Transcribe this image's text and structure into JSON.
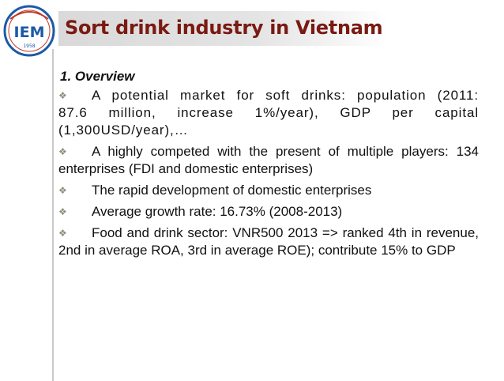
{
  "slide": {
    "logo": {
      "text": "IEM",
      "year": "1958"
    },
    "title": "Sort drink industry in Vietnam",
    "subheading": "1. Overview",
    "bullets": [
      {
        "icon": "diamond-bullet-icon",
        "text": "A potential market for soft drinks: population (2011: 87.6 million, increase 1%/year), GDP per capital (1,300USD/year),…"
      },
      {
        "icon": "diamond-bullet-icon",
        "text": "A highly competed with the present of multiple players: 134 enterprises (FDI and domestic enterprises)"
      },
      {
        "icon": "diamond-bullet-icon",
        "text": "The rapid development of domestic enterprises"
      },
      {
        "icon": "diamond-bullet-icon",
        "text": "Average growth rate: 16.73% (2008-2013)"
      },
      {
        "icon": "diamond-bullet-icon",
        "text": "Food and drink sector: VNR500 2013 => ranked 4th in revenue, 2nd in average ROA, 3rd in average ROE); contribute 15% to GDP"
      }
    ]
  },
  "colors": {
    "title": "#7a1a12",
    "title_band": "#d9d9d9",
    "bullet": "#8a8f7a",
    "logo_blue": "#1c5aa6",
    "logo_red": "#c0392b"
  }
}
